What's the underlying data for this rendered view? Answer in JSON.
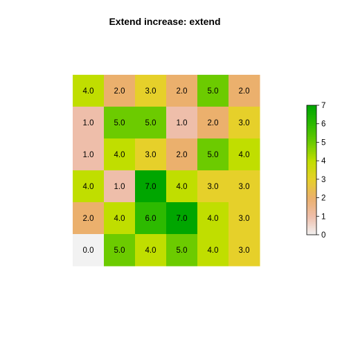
{
  "chart_data": {
    "type": "heatmap",
    "title": "Extend increase: extend",
    "xlabel": "",
    "ylabel": "",
    "nrows": 6,
    "ncols": 6,
    "values": [
      [
        4,
        2,
        3,
        2,
        5,
        2
      ],
      [
        1,
        5,
        5,
        1,
        2,
        3
      ],
      [
        1,
        4,
        3,
        2,
        5,
        4
      ],
      [
        4,
        1,
        7,
        4,
        3,
        3
      ],
      [
        2,
        4,
        6,
        7,
        4,
        3
      ],
      [
        0,
        5,
        4,
        5,
        4,
        3
      ]
    ],
    "cell_labels": [
      [
        "4.0",
        "2.0",
        "3.0",
        "2.0",
        "5.0",
        "2.0"
      ],
      [
        "1.0",
        "5.0",
        "5.0",
        "1.0",
        "2.0",
        "3.0"
      ],
      [
        "1.0",
        "4.0",
        "3.0",
        "2.0",
        "5.0",
        "4.0"
      ],
      [
        "4.0",
        "1.0",
        "7.0",
        "4.0",
        "3.0",
        "3.0"
      ],
      [
        "2.0",
        "4.0",
        "6.0",
        "7.0",
        "4.0",
        "3.0"
      ],
      [
        "0.0",
        "5.0",
        "4.0",
        "5.0",
        "4.0",
        "3.0"
      ]
    ],
    "color_scale": {
      "min": 0,
      "max": 7,
      "ticks": [
        "0",
        "1",
        "2",
        "3",
        "4",
        "5",
        "6",
        "7"
      ],
      "palette": [
        "#F2F2F2",
        "#EEBEAA",
        "#EBB06D",
        "#E6D02A",
        "#C0DE00",
        "#6CCB00",
        "#2DBA00",
        "#00A600"
      ]
    },
    "legend": "right"
  }
}
